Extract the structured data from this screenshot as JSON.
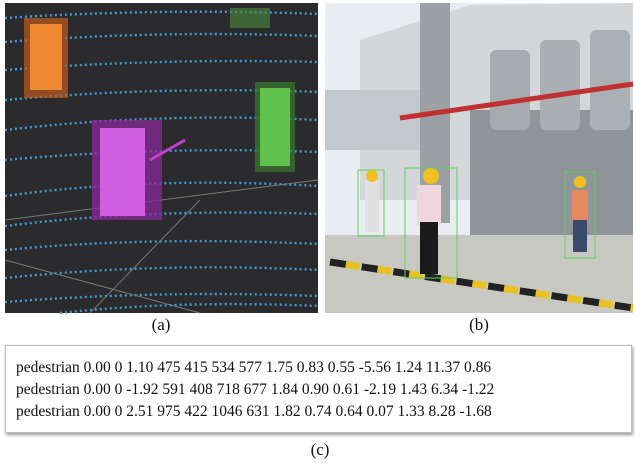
{
  "panels": [
    {
      "label": "(a)"
    },
    {
      "label": "(b)"
    }
  ],
  "annotation": {
    "lines": [
      "pedestrian 0.00 0 1.10 475 415 534 577 1.75 0.83 0.55 -5.56 1.24 11.37 0.86",
      "pedestrian 0.00 0 -1.92 591 408 718 677 1.84 0.90 0.61 -2.19 1.43 6.34 -1.22",
      "pedestrian 0.00 0 2.51 975 422 1046 631 1.82 0.74 0.64 0.07 1.33 8.28 -1.68"
    ],
    "label": "(c)"
  }
}
